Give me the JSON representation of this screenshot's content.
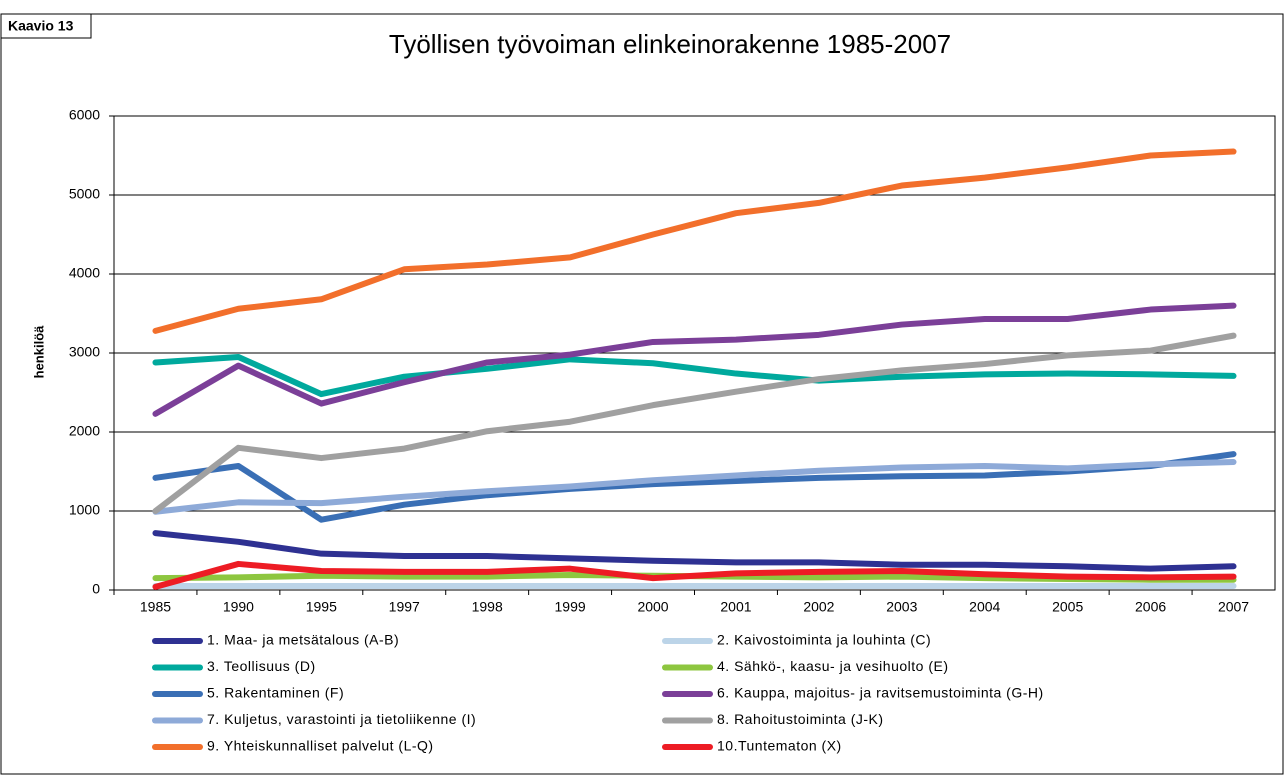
{
  "label": "Kaavio 13",
  "chart_data": {
    "type": "line",
    "title": "Työllisen työvoiman elinkeinorakenne 1985-2007",
    "y_label": "henkilöä",
    "categories": [
      "1985",
      "1990",
      "1995",
      "1997",
      "1998",
      "1999",
      "2000",
      "2001",
      "2002",
      "2003",
      "2004",
      "2005",
      "2006",
      "2007"
    ],
    "ylim": [
      0,
      6000
    ],
    "yticks": [
      0,
      1000,
      2000,
      3000,
      4000,
      5000,
      6000
    ],
    "grid": true,
    "legend": "bottom",
    "series": [
      {
        "name": "1. Maa- ja metsätalous (A-B)",
        "color": "#2e3192",
        "values": [
          720,
          610,
          460,
          430,
          430,
          400,
          370,
          350,
          350,
          320,
          320,
          300,
          270,
          300
        ]
      },
      {
        "name": "2. Kaivostoiminta ja louhinta (C)",
        "color": "#bcd4e8",
        "values": [
          50,
          50,
          50,
          50,
          50,
          50,
          50,
          50,
          50,
          50,
          50,
          50,
          50,
          50
        ]
      },
      {
        "name": "3. Teollisuus (D)",
        "color": "#00a99d",
        "values": [
          2880,
          2950,
          2480,
          2700,
          2800,
          2920,
          2870,
          2740,
          2650,
          2700,
          2730,
          2740,
          2730,
          2710
        ]
      },
      {
        "name": "4. Sähkö-, kaasu- ja vesihuolto (E)",
        "color": "#8dc63f",
        "values": [
          150,
          160,
          180,
          170,
          170,
          190,
          180,
          170,
          160,
          170,
          150,
          140,
          130,
          130
        ]
      },
      {
        "name": "5. Rakentaminen (F)",
        "color": "#3a6fb5",
        "values": [
          1420,
          1570,
          890,
          1080,
          1200,
          1280,
          1340,
          1380,
          1420,
          1440,
          1450,
          1500,
          1570,
          1720
        ]
      },
      {
        "name": "6. Kauppa, majoitus- ja ravitsemustoiminta (G-H)",
        "color": "#7b3f98",
        "values": [
          2230,
          2840,
          2360,
          2630,
          2880,
          2980,
          3140,
          3170,
          3230,
          3360,
          3430,
          3430,
          3550,
          3600
        ]
      },
      {
        "name": "7. Kuljetus, varastointi ja tietoliikenne (I)",
        "color": "#8eaad8",
        "values": [
          990,
          1110,
          1100,
          1180,
          1250,
          1310,
          1390,
          1450,
          1510,
          1550,
          1570,
          1540,
          1590,
          1620
        ]
      },
      {
        "name": "8. Rahoitustoiminta (J-K)",
        "color": "#a0a0a0",
        "values": [
          1000,
          1800,
          1670,
          1790,
          2010,
          2130,
          2340,
          2510,
          2670,
          2780,
          2860,
          2970,
          3030,
          3220
        ]
      },
      {
        "name": "9. Yhteiskunnalliset palvelut (L-Q)",
        "color": "#f26f2b",
        "values": [
          3280,
          3560,
          3680,
          4060,
          4120,
          4210,
          4500,
          4770,
          4900,
          5120,
          5220,
          5350,
          5500,
          5550
        ]
      },
      {
        "name": "10.Tuntematon (X)",
        "color": "#ed1c24",
        "values": [
          40,
          330,
          240,
          230,
          230,
          270,
          150,
          210,
          230,
          240,
          200,
          170,
          160,
          170
        ]
      }
    ]
  }
}
